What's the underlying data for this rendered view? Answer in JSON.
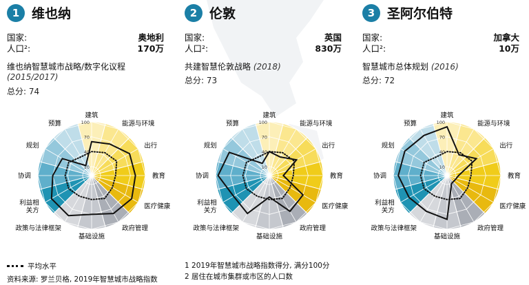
{
  "colors": {
    "badge": "#1b7fa6",
    "sector_colors": [
      "#fbf0c4",
      "#fcefb8",
      "#fbe78f",
      "#f7dc5a",
      "#f0cc1a",
      "#e8b90f",
      "#aaaeb6",
      "#c5c8ce",
      "#d6d8dc",
      "#1f93b3",
      "#5fafcb",
      "#94c8dc",
      "#bfdde9"
    ],
    "grid_line": "#ffffff",
    "city_line": "#111111",
    "avg_line": "#111111"
  },
  "cities": [
    {
      "number": "1",
      "name": "维也纳",
      "country_label": "国家:",
      "country": "奥地利",
      "population_label": "人口²:",
      "population": "170万",
      "strategy": "维也纳智慧城市战略/数字化议程",
      "strategy_year": "(2015/2017)",
      "score_label": "总分: 74"
    },
    {
      "number": "2",
      "name": "伦敦",
      "country_label": "国家:",
      "country": "英国",
      "population_label": "人口²:",
      "population": "830万",
      "strategy": "共建智慧伦敦战略",
      "strategy_year": "(2018)",
      "score_label": "总分: 73"
    },
    {
      "number": "3",
      "name": "圣阿尔伯特",
      "country_label": "国家:",
      "country": "加拿大",
      "population_label": "人口²:",
      "population": "10万",
      "strategy": "智慧城市总体规划",
      "strategy_year": "(2016)",
      "score_label": "总分: 72"
    }
  ],
  "chart_data": [
    {
      "type": "radar",
      "title": "维也纳",
      "axes": [
        "建筑",
        "能源与环境",
        "出行",
        "教育",
        "医疗健康",
        "政府管理",
        "基础设施",
        "政策与法律框架",
        "利益相关方",
        "协调",
        "规划",
        "预算"
      ],
      "rings": [
        10,
        40,
        70,
        100
      ],
      "tick_labels": [
        "100",
        "70",
        "40",
        "10"
      ],
      "series": [
        {
          "values": [
            60,
            65,
            80,
            80,
            85,
            80,
            70,
            85,
            85,
            70,
            60,
            15
          ]
        },
        {
          "values": [
            40,
            45,
            50,
            40,
            40,
            45,
            40,
            40,
            45,
            45,
            45,
            35
          ]
        }
      ]
    },
    {
      "type": "radar",
      "title": "伦敦",
      "axes": [
        "建筑",
        "能源与环境",
        "出行",
        "教育",
        "医疗健康",
        "政府管理",
        "基础设施",
        "政策与法律框架",
        "利益相关方",
        "协调",
        "规划",
        "预算"
      ],
      "rings": [
        10,
        40,
        70,
        100
      ],
      "tick_labels": [
        "100",
        "70",
        "40",
        "10"
      ],
      "series": [
        {
          "values": [
            40,
            35,
            55,
            20,
            70,
            75,
            35,
            80,
            75,
            95,
            85,
            20
          ]
        },
        {
          "values": [
            40,
            45,
            50,
            40,
            40,
            45,
            40,
            40,
            45,
            45,
            45,
            35
          ]
        }
      ]
    },
    {
      "type": "radar",
      "title": "圣阿尔伯特",
      "axes": [
        "建筑",
        "能源与环境",
        "出行",
        "教育",
        "医疗健康",
        "政府管理",
        "基础设施",
        "政策与法律框架",
        "利益相关方",
        "协调",
        "规划",
        "预算"
      ],
      "rings": [
        10,
        40,
        70,
        100
      ],
      "tick_labels": [
        "100",
        "70",
        "40",
        "10"
      ],
      "series": [
        {
          "values": [
            90,
            40,
            60,
            15,
            10,
            10,
            80,
            75,
            80,
            90,
            90,
            85
          ]
        },
        {
          "values": [
            40,
            45,
            50,
            40,
            40,
            45,
            40,
            40,
            45,
            45,
            45,
            35
          ]
        }
      ]
    }
  ],
  "footer": {
    "legend_label": "平均水平",
    "source": "资料来源: 罗兰贝格, 2019年智慧城市战略指数",
    "footnote1": "1 2019年智慧城市战略指数得分, 满分100分",
    "footnote2": "2 居住在城市集群或市区的人口数"
  }
}
